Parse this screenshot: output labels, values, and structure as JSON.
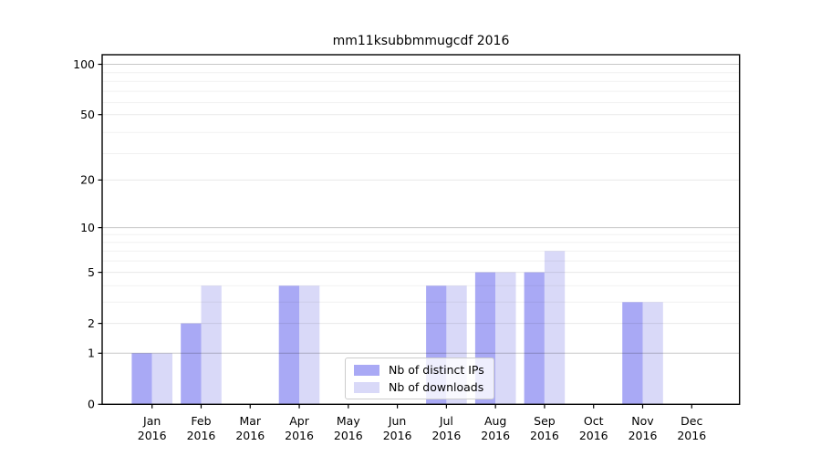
{
  "figure": {
    "title": "mm11ksubbmmugcdf 2016"
  },
  "colors": {
    "background": "#ffffff",
    "axis": "#000000",
    "grid_minor": "rgba(0,0,0,0.06)",
    "grid_major": "rgba(0,0,0,0.09)",
    "grid_emphasis": "rgba(0,0,0,0.22)",
    "tick_label": "#000000"
  },
  "chart_data": {
    "type": "bar",
    "title": "mm11ksubbmmugcdf 2016",
    "categories": [
      "Jan 2016",
      "Feb 2016",
      "Mar 2016",
      "Apr 2016",
      "May 2016",
      "Jun 2016",
      "Jul 2016",
      "Aug 2016",
      "Sep 2016",
      "Oct 2016",
      "Nov 2016",
      "Dec 2016"
    ],
    "series": [
      {
        "name": "Nb of distinct IPs",
        "color": "#a9a9f5",
        "values": [
          1,
          2,
          0,
          4,
          0,
          0,
          4,
          5,
          5,
          0,
          3,
          0
        ]
      },
      {
        "name": "Nb of downloads",
        "color": "#d9d9f8",
        "values": [
          1,
          4,
          0,
          4,
          0,
          0,
          4,
          5,
          7,
          0,
          3,
          0
        ]
      }
    ],
    "xlabel": "",
    "ylabel": "",
    "yscale": "log1p",
    "ylim": [
      0,
      114
    ],
    "yticks": [
      0,
      1,
      2,
      5,
      10,
      20,
      50,
      100
    ],
    "grid": {
      "emphasis_values": [
        1,
        10,
        100
      ],
      "major_values": [
        2,
        5,
        20,
        50
      ],
      "minor_values": [
        3,
        4,
        6,
        7,
        8,
        9,
        29,
        39,
        59,
        69,
        79,
        89
      ]
    },
    "legend_position": "inside-lower-center",
    "grid_above_bars": true
  }
}
